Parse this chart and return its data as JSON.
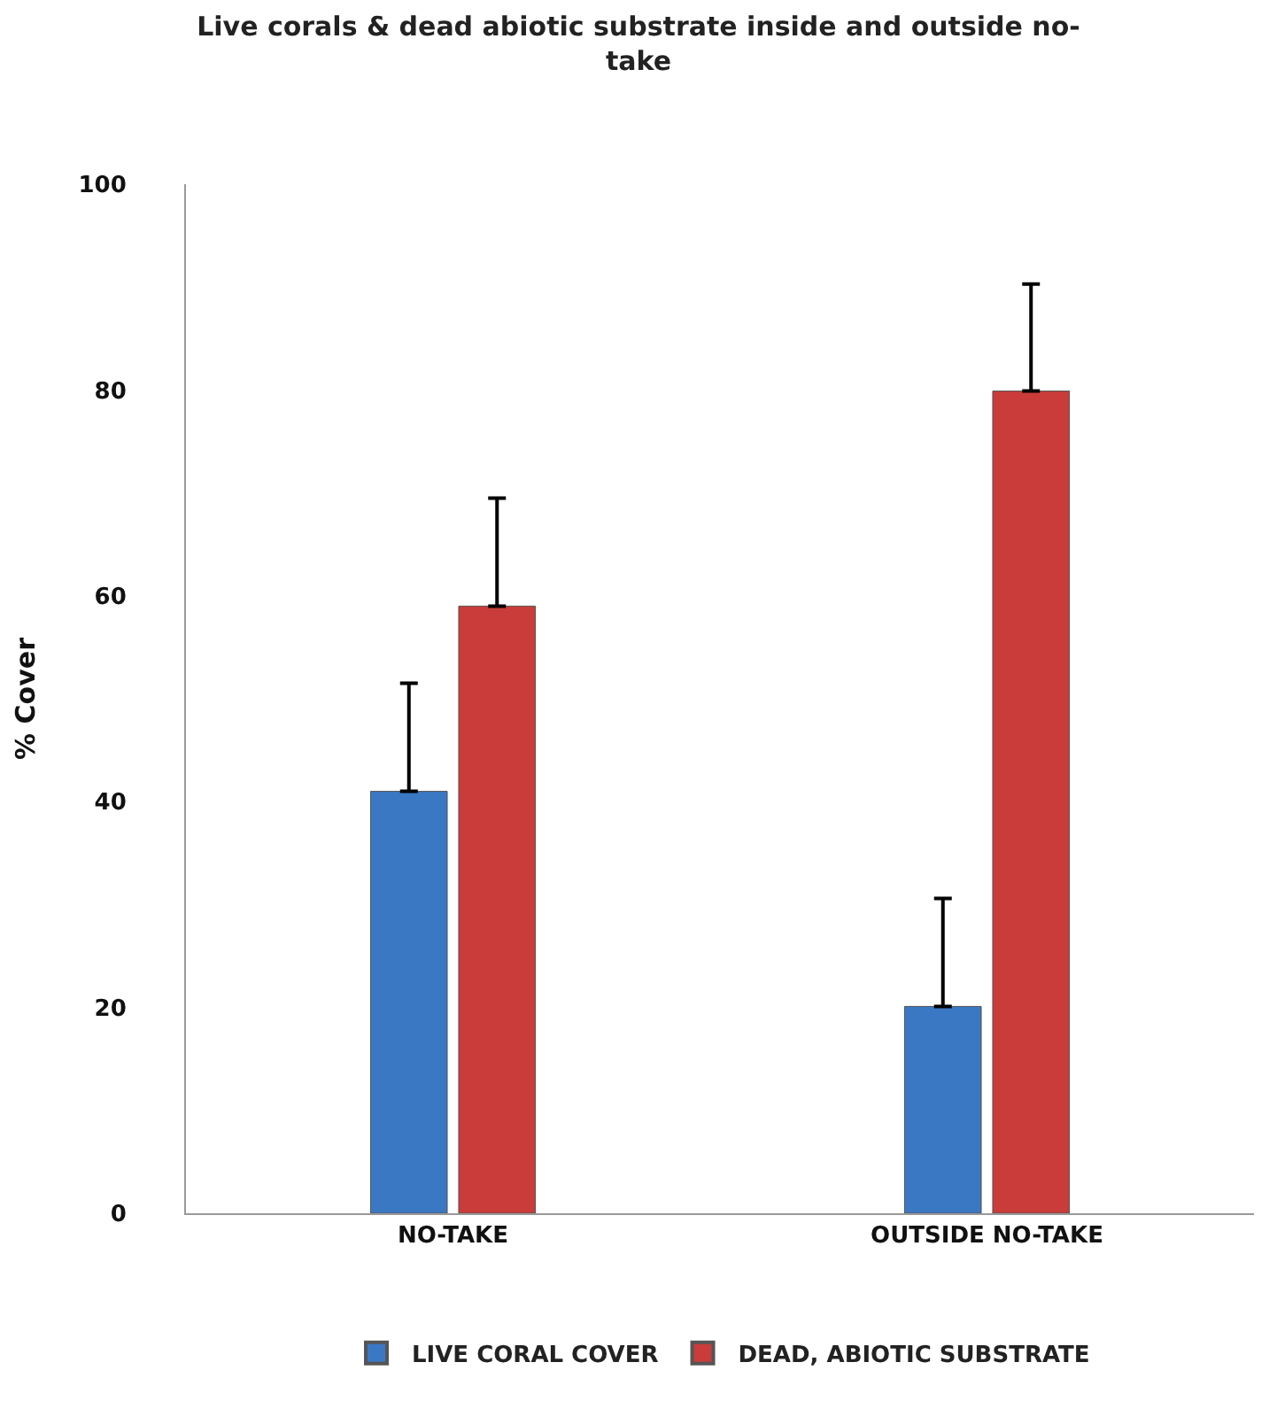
{
  "chart_data": {
    "type": "bar",
    "title": "Live corals & dead abiotic substrate inside and outside no-take",
    "ylabel": "% Cover",
    "categories": [
      "NO-TAKE",
      "OUTSIDE NO-TAKE"
    ],
    "series": [
      {
        "name": "LIVE CORAL COVER",
        "color": "#3b78c4",
        "values": [
          41,
          20.1
        ],
        "errors": [
          [
            41,
            51.5
          ],
          [
            20.1,
            30.6
          ]
        ]
      },
      {
        "name": "DEAD, ABIOTIC SUBSTRATE",
        "color": "#c93c3a",
        "values": [
          59,
          79.9
        ],
        "errors": [
          [
            59,
            69.5
          ],
          [
            79.9,
            90.3
          ]
        ]
      }
    ],
    "ylim": [
      0,
      100
    ],
    "yticks": [
      0,
      20,
      40,
      60,
      80,
      100
    ],
    "legend": "bottom"
  }
}
